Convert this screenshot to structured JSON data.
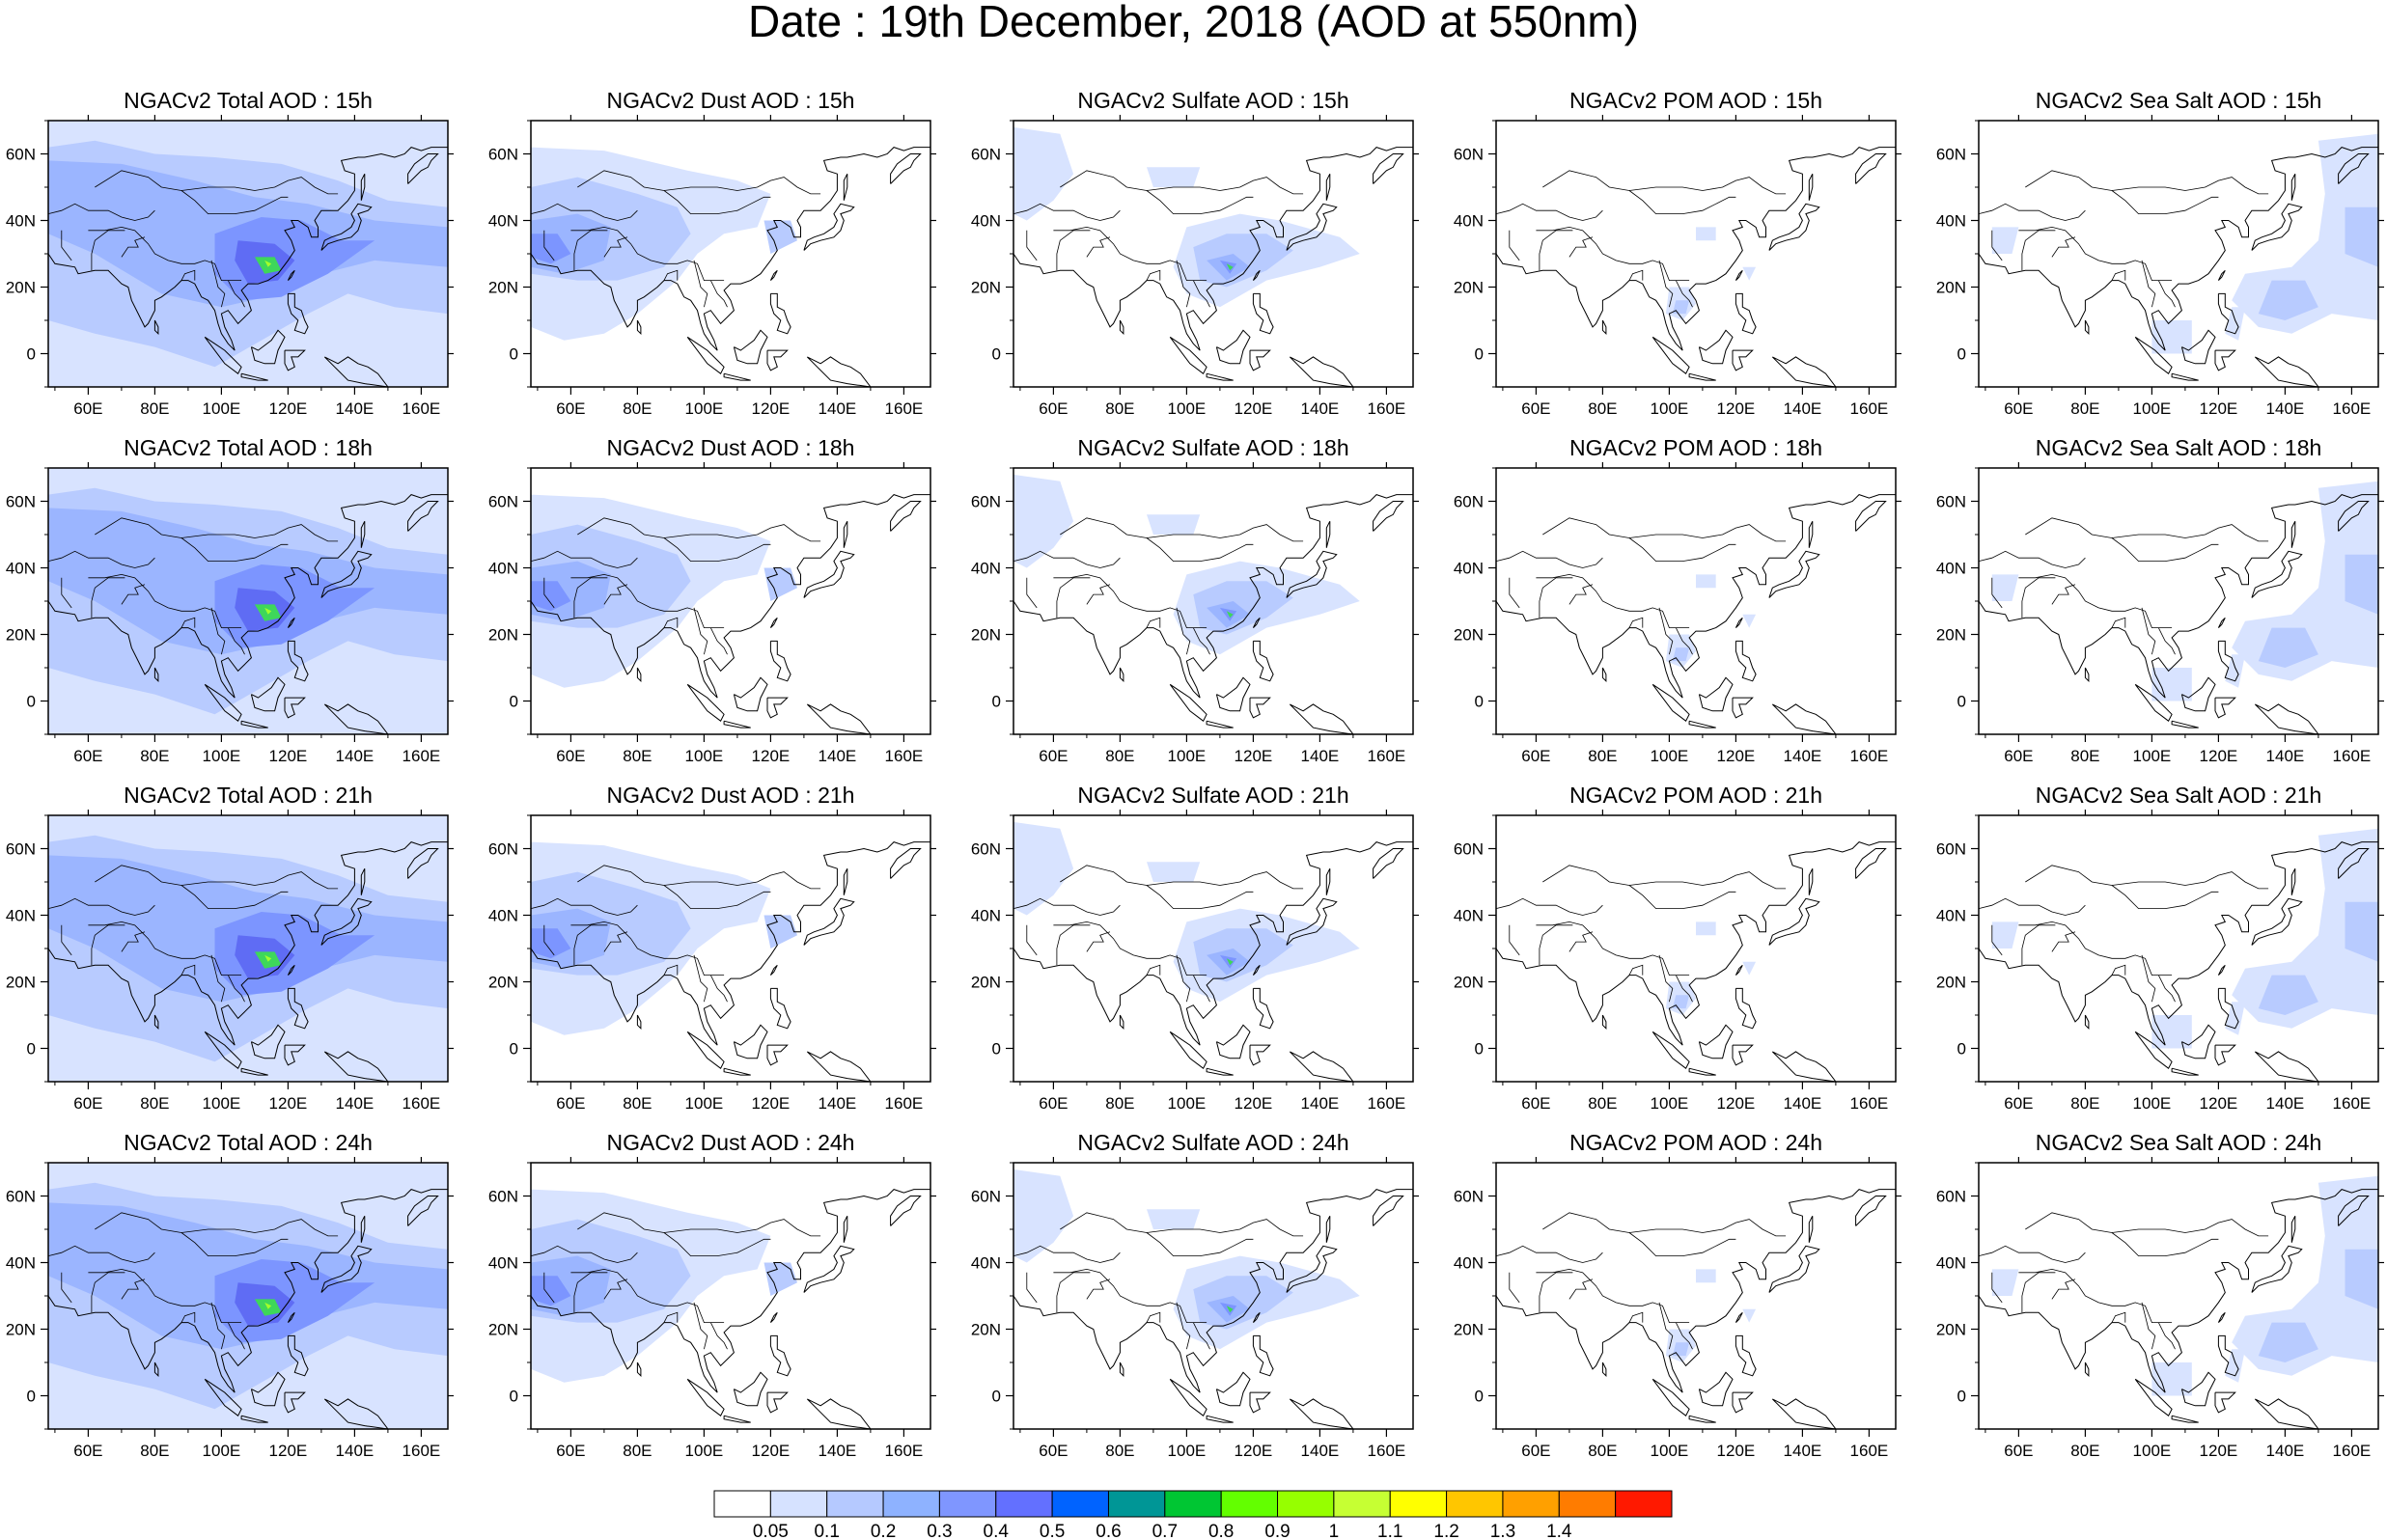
{
  "title": "Date : 19th December, 2018 (AOD at 550nm)",
  "rows": [
    [
      "NGACv2 Total AOD : 15h",
      "NGACv2 Dust AOD : 15h",
      "NGACv2 Sulfate AOD : 15h",
      "NGACv2 POM AOD : 15h",
      "NGACv2 Sea Salt AOD : 15h"
    ],
    [
      "NGACv2 Total AOD : 18h",
      "NGACv2 Dust AOD : 18h",
      "NGACv2 Sulfate AOD : 18h",
      "NGACv2 POM AOD : 18h",
      "NGACv2 Sea Salt AOD : 18h"
    ],
    [
      "NGACv2 Total AOD : 21h",
      "NGACv2 Dust AOD : 21h",
      "NGACv2 Sulfate AOD : 21h",
      "NGACv2 POM AOD : 21h",
      "NGACv2 Sea Salt AOD : 21h"
    ],
    [
      "NGACv2 Total AOD : 24h",
      "NGACv2 Dust AOD : 24h",
      "NGACv2 Sulfate AOD : 24h",
      "NGACv2 POM AOD : 24h",
      "NGACv2 Sea Salt  AOD : 24h"
    ]
  ],
  "axes": {
    "lon_ticks": [
      "60E",
      "80E",
      "100E",
      "120E",
      "140E",
      "160E"
    ],
    "lat_ticks": [
      "60N",
      "40N",
      "20N",
      "0"
    ],
    "lon_range": [
      48,
      168
    ],
    "lat_range": [
      -10,
      70
    ]
  },
  "colorbar": {
    "labels": [
      "0.05",
      "0.1",
      "0.2",
      "0.3",
      "0.4",
      "0.5",
      "0.6",
      "0.7",
      "0.8",
      "0.9",
      "1",
      "1.1",
      "1.2",
      "1.3",
      "1.4"
    ],
    "colors": [
      "#ffffff",
      "#d6e2ff",
      "#b5c9ff",
      "#8eb2ff",
      "#7f96ff",
      "#6370ff",
      "#0063ff",
      "#009696",
      "#00c633",
      "#63ff00",
      "#96ff00",
      "#c6ff33",
      "#ffff00",
      "#ffc600",
      "#ffa000",
      "#ff7c00",
      "#ff1900"
    ]
  }
}
